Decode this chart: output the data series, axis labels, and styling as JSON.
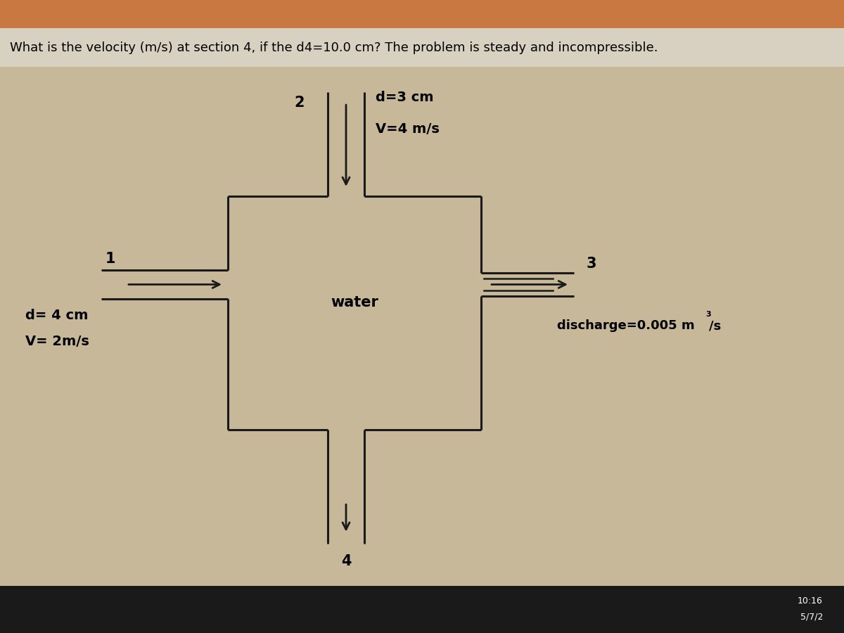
{
  "title": "What is the velocity (m/s) at section 4, if the d4=10.0 cm? The problem is steady and incompressible.",
  "bg_color": "#c8b89a",
  "title_bar_color": "#d8d0c0",
  "top_stripe_color": "#c87840",
  "taskbar_bg": "#1a1a1a",
  "box_color": "#1a1a1a",
  "label_1": "1",
  "label_2": "2",
  "label_3": "3",
  "label_4": "4",
  "text_d1": "d= 4 cm",
  "text_v1": "V= 2m/s",
  "text_d2": "d=3 cm",
  "text_v2": "V=4 m/s",
  "text_discharge": "discharge=0.005 m",
  "text_discharge_sup": "3",
  "text_discharge_end": "/s",
  "text_water": "water",
  "time_text": "10:16",
  "date_text": "5/7/2",
  "font_size_title": 13,
  "font_size_labels": 13,
  "font_size_water": 15
}
